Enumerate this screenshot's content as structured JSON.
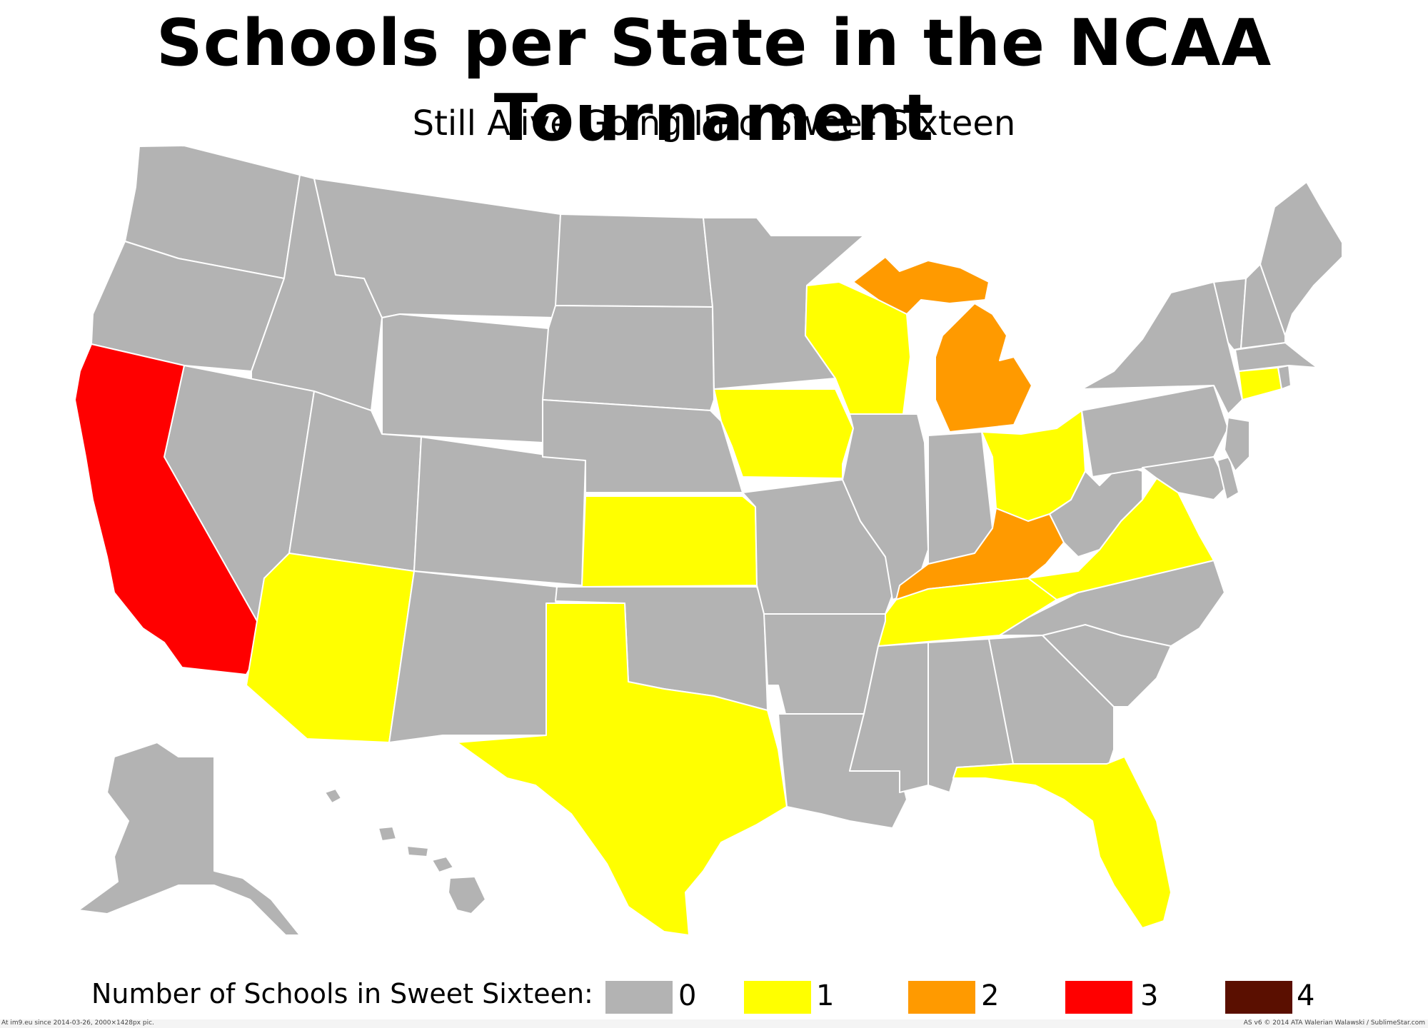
{
  "title": "Schools per State in the NCAA Tournament",
  "subtitle": "Still Alive Going Into Sweet Sixteen",
  "legend": {
    "label": "Number of Schools in Sweet Sixteen:",
    "items": [
      {
        "value": "0",
        "color": "#b3b3b3"
      },
      {
        "value": "1",
        "color": "#ffff00"
      },
      {
        "value": "2",
        "color": "#ff9a00"
      },
      {
        "value": "3",
        "color": "#ff0000"
      },
      {
        "value": "4",
        "color": "#5a0f00"
      }
    ]
  },
  "map_data": {
    "California": 3,
    "Arizona": 1,
    "Texas": 1,
    "Kansas": 1,
    "Iowa": 1,
    "Wisconsin": 1,
    "Michigan": 2,
    "Ohio": 1,
    "Kentucky": 2,
    "Tennessee": 1,
    "Virginia": 1,
    "Florida": 1,
    "Connecticut": 1
  },
  "footer": {
    "left": "At im9.eu  since 2014-03-26, 2000×1428px pic.",
    "right": "AS v6 © 2014 ATA Walerian Walawski / SublimeStar.com"
  }
}
